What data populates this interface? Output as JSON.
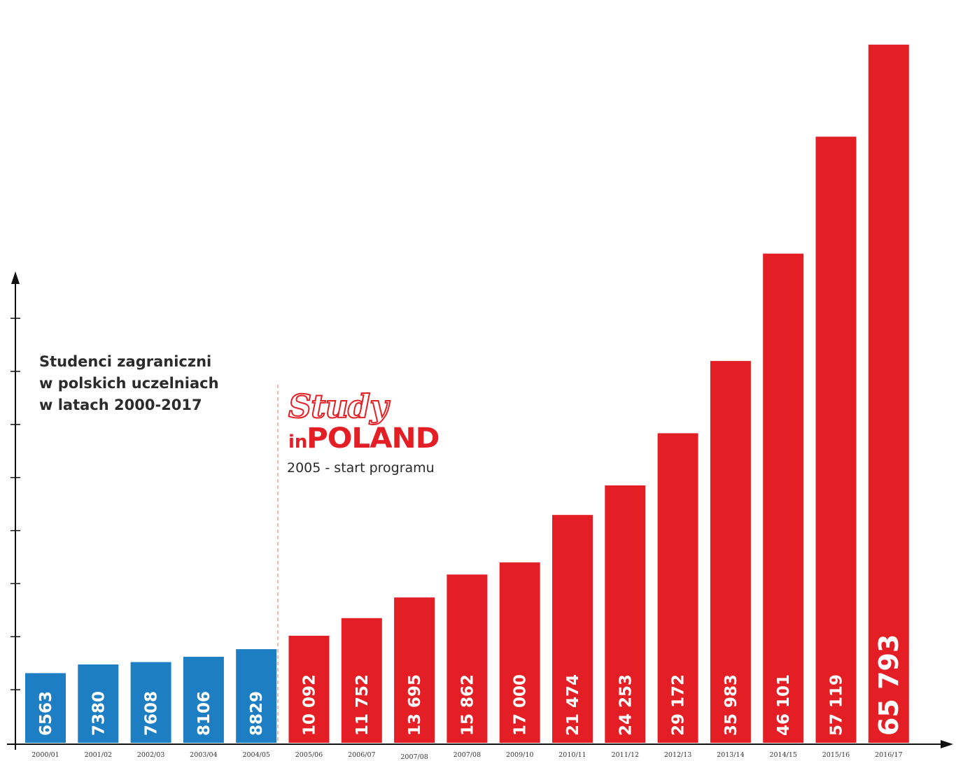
{
  "chart_data": {
    "type": "bar",
    "title": "Studenci zagraniczni w polskich uczelniach w latach 2000-2017",
    "title_lines": [
      "Studenci zagraniczni",
      "w polskich uczelniach",
      "w latach 2000-2017"
    ],
    "xlabel": "",
    "ylabel": "",
    "ylim": [
      0,
      70000
    ],
    "grid": false,
    "categories": [
      "2000/01",
      "2001/02",
      "2002/03",
      "2003/04",
      "2004/05",
      "2005/06",
      "2006/07",
      "2007/08",
      "2007/08",
      "2009/10",
      "2010/11",
      "2011/12",
      "2012/13",
      "2013/14",
      "2014/15",
      "2015/16",
      "2016/17"
    ],
    "values": [
      6563,
      7380,
      7608,
      8106,
      8829,
      10092,
      11752,
      13695,
      15862,
      17000,
      21474,
      24253,
      29172,
      35983,
      46101,
      57119,
      65793
    ],
    "value_labels": [
      "6563",
      "7380",
      "7608",
      "8106",
      "8829",
      "10 092",
      "11 752",
      "13 695",
      "15 862",
      "17 000",
      "21 474",
      "24 253",
      "29 172",
      "35 983",
      "46 101",
      "57 119",
      "65 793"
    ],
    "colors": {
      "before_program": "#1d7ec3",
      "after_program": "#e41e25"
    },
    "program_start_index": 5,
    "annotation": {
      "logo_word_1": "Study",
      "logo_word_2": "in",
      "logo_word_3": "POLAND",
      "note": "2005 - start programu"
    }
  }
}
